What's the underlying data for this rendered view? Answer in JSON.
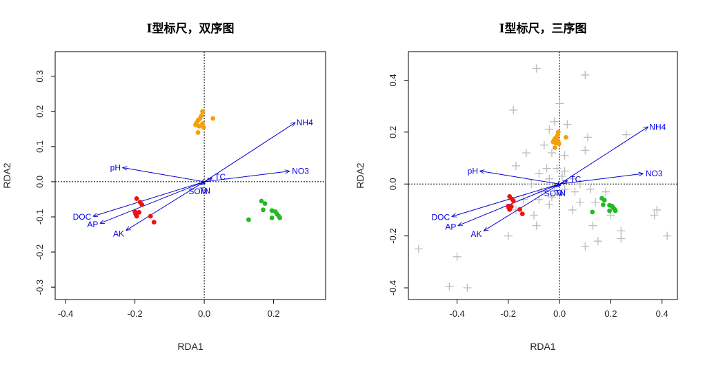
{
  "chart_data": [
    {
      "type": "scatter",
      "title": "I型标尺，双序图",
      "xlabel": "RDA1",
      "ylabel": "RDA2",
      "xlim": [
        -0.43,
        0.35
      ],
      "ylim": [
        -0.335,
        0.37
      ],
      "xticks": [
        -0.4,
        -0.2,
        0.0,
        0.2
      ],
      "yticks": [
        -0.3,
        -0.2,
        -0.1,
        0.0,
        0.1,
        0.2,
        0.3
      ],
      "xtick_labels": [
        "-0.4",
        "-0.2",
        "0.0",
        "0.2"
      ],
      "ytick_labels": [
        "-0.3",
        "-0.2",
        "-0.1",
        "0.0",
        "0.1",
        "0.2",
        "0.3"
      ],
      "groups": [
        {
          "color": "#f5a00a",
          "points": [
            [
              -0.005,
              0.2
            ],
            [
              -0.008,
              0.188
            ],
            [
              -0.012,
              0.18
            ],
            [
              -0.018,
              0.175
            ],
            [
              0.025,
              0.18
            ],
            [
              -0.022,
              0.168
            ],
            [
              -0.005,
              0.165
            ],
            [
              -0.015,
              0.158
            ],
            [
              -0.002,
              0.155
            ],
            [
              -0.025,
              0.162
            ],
            [
              -0.018,
              0.14
            ]
          ]
        },
        {
          "color": "#ee1111",
          "points": [
            [
              -0.195,
              -0.048
            ],
            [
              -0.185,
              -0.058
            ],
            [
              -0.18,
              -0.065
            ],
            [
              -0.188,
              -0.087
            ],
            [
              -0.2,
              -0.085
            ],
            [
              -0.198,
              -0.092
            ],
            [
              -0.195,
              -0.098
            ],
            [
              -0.155,
              -0.098
            ],
            [
              -0.145,
              -0.115
            ]
          ]
        },
        {
          "color": "#22bb22",
          "points": [
            [
              0.165,
              -0.055
            ],
            [
              0.175,
              -0.062
            ],
            [
              0.17,
              -0.08
            ],
            [
              0.195,
              -0.082
            ],
            [
              0.205,
              -0.085
            ],
            [
              0.21,
              -0.092
            ],
            [
              0.215,
              -0.098
            ],
            [
              0.195,
              -0.103
            ],
            [
              0.218,
              -0.103
            ],
            [
              0.128,
              -0.108
            ]
          ]
        }
      ],
      "vectors": [
        {
          "label": "NH4",
          "x": 0.262,
          "y": 0.168
        },
        {
          "label": "NO3",
          "x": 0.245,
          "y": 0.03
        },
        {
          "label": "pH",
          "x": -0.235,
          "y": 0.04
        },
        {
          "label": "DOC",
          "x": -0.32,
          "y": -0.098
        },
        {
          "label": "AP",
          "x": -0.3,
          "y": -0.118
        },
        {
          "label": "AK",
          "x": -0.225,
          "y": -0.138
        },
        {
          "label": "TC",
          "x": 0.022,
          "y": 0.01
        },
        {
          "label": "SOM",
          "x": -0.01,
          "y": -0.008
        },
        {
          "label": "TN",
          "x": -0.002,
          "y": -0.006
        }
      ]
    },
    {
      "type": "scatter",
      "title": "I型标尺，三序图",
      "xlabel": "RDA1",
      "ylabel": "RDA2",
      "xlim": [
        -0.59,
        0.46
      ],
      "ylim": [
        -0.445,
        0.51
      ],
      "xticks": [
        -0.4,
        -0.2,
        0.0,
        0.2,
        0.4
      ],
      "yticks": [
        -0.4,
        -0.2,
        0.0,
        0.2,
        0.4
      ],
      "xtick_labels": [
        "-0.4",
        "-0.2",
        "0.0",
        "0.2",
        "0.4"
      ],
      "ytick_labels": [
        "-0.4",
        "-0.2",
        "0.0",
        "0.2",
        "0.4"
      ],
      "species_color": "#bbbbbb",
      "species": [
        [
          -0.09,
          0.445
        ],
        [
          0.1,
          0.42
        ],
        [
          -0.18,
          0.285
        ],
        [
          0.0,
          0.31
        ],
        [
          -0.02,
          0.24
        ],
        [
          0.03,
          0.23
        ],
        [
          -0.04,
          0.21
        ],
        [
          0.11,
          0.18
        ],
        [
          0.26,
          0.19
        ],
        [
          0.1,
          0.13
        ],
        [
          -0.13,
          0.12
        ],
        [
          -0.06,
          0.15
        ],
        [
          -0.17,
          0.07
        ],
        [
          -0.03,
          0.12
        ],
        [
          0.02,
          0.11
        ],
        [
          -0.05,
          0.06
        ],
        [
          -0.01,
          0.06
        ],
        [
          0.02,
          0.05
        ],
        [
          -0.08,
          0.04
        ],
        [
          -0.04,
          0.02
        ],
        [
          0.01,
          0.03
        ],
        [
          0.05,
          0.02
        ],
        [
          0.08,
          0.0
        ],
        [
          -0.11,
          0.0
        ],
        [
          -0.02,
          -0.01
        ],
        [
          0.02,
          -0.02
        ],
        [
          -0.07,
          -0.03
        ],
        [
          0.06,
          -0.03
        ],
        [
          0.12,
          -0.02
        ],
        [
          0.18,
          -0.03
        ],
        [
          -0.14,
          -0.06
        ],
        [
          -0.08,
          -0.06
        ],
        [
          -0.04,
          -0.08
        ],
        [
          0.08,
          -0.07
        ],
        [
          0.14,
          -0.07
        ],
        [
          -0.17,
          -0.1
        ],
        [
          -0.1,
          -0.12
        ],
        [
          -0.09,
          -0.16
        ],
        [
          0.2,
          -0.12
        ],
        [
          0.13,
          -0.16
        ],
        [
          0.15,
          -0.22
        ],
        [
          -0.2,
          -0.2
        ],
        [
          0.24,
          -0.18
        ],
        [
          0.24,
          -0.21
        ],
        [
          0.37,
          -0.12
        ],
        [
          0.38,
          -0.1
        ],
        [
          0.42,
          -0.2
        ],
        [
          -0.55,
          -0.25
        ],
        [
          -0.4,
          -0.28
        ],
        [
          -0.43,
          -0.395
        ],
        [
          -0.36,
          -0.4
        ],
        [
          0.1,
          -0.24
        ],
        [
          -0.03,
          -0.05
        ],
        [
          0.05,
          -0.1
        ],
        [
          0.0,
          -0.04
        ]
      ],
      "groups": [
        {
          "color": "#f5a00a",
          "points": [
            [
              -0.005,
              0.2
            ],
            [
              -0.008,
              0.188
            ],
            [
              -0.012,
              0.18
            ],
            [
              -0.018,
              0.175
            ],
            [
              0.025,
              0.18
            ],
            [
              -0.022,
              0.168
            ],
            [
              -0.005,
              0.165
            ],
            [
              -0.015,
              0.158
            ],
            [
              -0.002,
              0.155
            ],
            [
              -0.025,
              0.162
            ],
            [
              -0.018,
              0.14
            ]
          ]
        },
        {
          "color": "#ee1111",
          "points": [
            [
              -0.195,
              -0.048
            ],
            [
              -0.185,
              -0.058
            ],
            [
              -0.18,
              -0.065
            ],
            [
              -0.188,
              -0.087
            ],
            [
              -0.2,
              -0.085
            ],
            [
              -0.198,
              -0.092
            ],
            [
              -0.195,
              -0.098
            ],
            [
              -0.155,
              -0.098
            ],
            [
              -0.145,
              -0.115
            ]
          ]
        },
        {
          "color": "#22bb22",
          "points": [
            [
              0.165,
              -0.055
            ],
            [
              0.175,
              -0.062
            ],
            [
              0.17,
              -0.08
            ],
            [
              0.195,
              -0.082
            ],
            [
              0.205,
              -0.085
            ],
            [
              0.21,
              -0.092
            ],
            [
              0.215,
              -0.098
            ],
            [
              0.195,
              -0.103
            ],
            [
              0.218,
              -0.103
            ],
            [
              0.128,
              -0.108
            ]
          ]
        }
      ],
      "vectors": [
        {
          "label": "NH4",
          "x": 0.345,
          "y": 0.22
        },
        {
          "label": "NO3",
          "x": 0.325,
          "y": 0.04
        },
        {
          "label": "pH",
          "x": -0.31,
          "y": 0.05
        },
        {
          "label": "DOC",
          "x": -0.42,
          "y": -0.125
        },
        {
          "label": "AP",
          "x": -0.395,
          "y": -0.16
        },
        {
          "label": "AK",
          "x": -0.295,
          "y": -0.18
        },
        {
          "label": "TC",
          "x": 0.03,
          "y": 0.012
        },
        {
          "label": "SOM",
          "x": -0.013,
          "y": -0.01
        },
        {
          "label": "TN",
          "x": -0.003,
          "y": -0.008
        }
      ]
    }
  ]
}
